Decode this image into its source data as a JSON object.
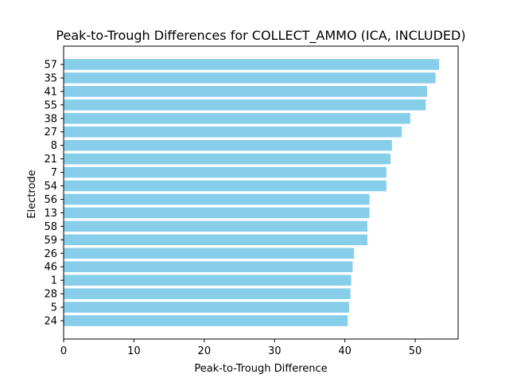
{
  "chart_data": {
    "type": "bar",
    "orientation": "horizontal",
    "title": "Peak-to-Trough Differences for COLLECT_AMMO (ICA, INCLUDED)",
    "xlabel": "Peak-to-Trough Difference",
    "ylabel": "Electrode",
    "categories": [
      "57",
      "35",
      "41",
      "55",
      "38",
      "27",
      "8",
      "21",
      "7",
      "54",
      "56",
      "13",
      "58",
      "59",
      "26",
      "46",
      "1",
      "28",
      "5",
      "24"
    ],
    "values": [
      53.4,
      52.9,
      51.7,
      51.5,
      49.3,
      48.1,
      46.7,
      46.5,
      45.9,
      45.9,
      43.5,
      43.5,
      43.2,
      43.2,
      41.3,
      41.1,
      40.9,
      40.8,
      40.6,
      40.4
    ],
    "xlim": [
      0,
      56.1
    ],
    "xticks": [
      0,
      10,
      20,
      30,
      40,
      50
    ],
    "grid": false,
    "bar_color": "#87CEEB"
  }
}
